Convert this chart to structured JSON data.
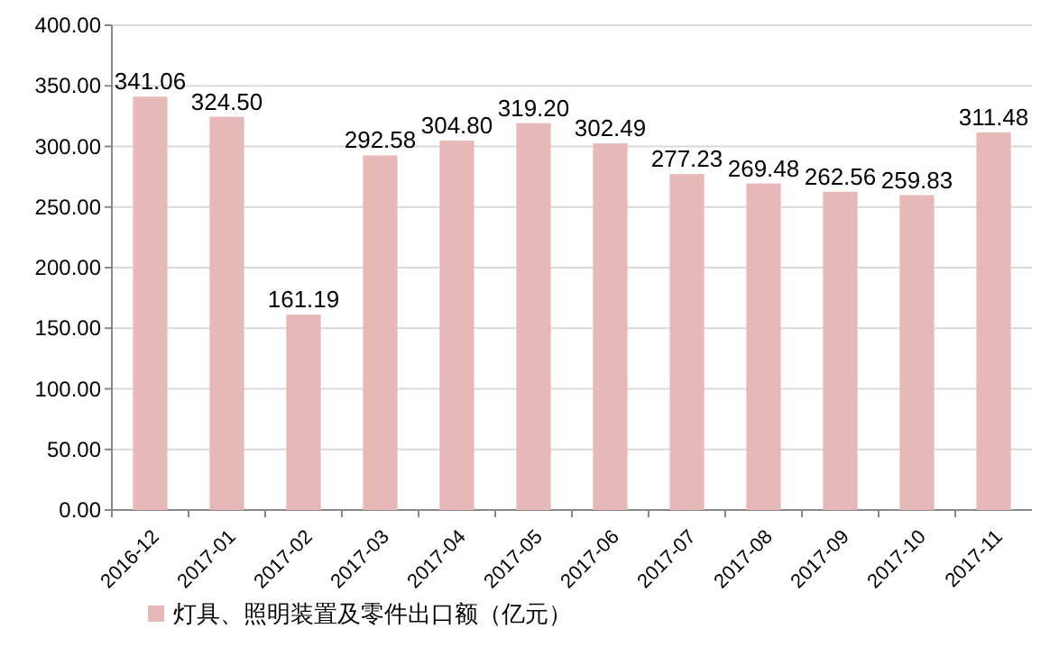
{
  "chart_data": {
    "type": "bar",
    "categories": [
      "2016-12",
      "2017-01",
      "2017-02",
      "2017-03",
      "2017-04",
      "2017-05",
      "2017-06",
      "2017-07",
      "2017-08",
      "2017-09",
      "2017-10",
      "2017-11"
    ],
    "series": [
      {
        "name": "灯具、照明装置及零件出口额（亿元）",
        "color": "#e6b9b8",
        "values": [
          341.06,
          324.5,
          161.19,
          292.58,
          304.8,
          319.2,
          302.49,
          277.23,
          269.48,
          262.56,
          259.83,
          311.48
        ],
        "value_labels": [
          "341.06",
          "324.50",
          "161.19",
          "292.58",
          "304.80",
          "319.20",
          "302.49",
          "277.23",
          "269.48",
          "262.56",
          "259.83",
          "311.48"
        ]
      }
    ],
    "ylim": [
      0,
      400
    ],
    "yticks": [
      {
        "value": 0,
        "label": "0.00"
      },
      {
        "value": 50,
        "label": "50.00"
      },
      {
        "value": 100,
        "label": "100.00"
      },
      {
        "value": 150,
        "label": "150.00"
      },
      {
        "value": 200,
        "label": "200.00"
      },
      {
        "value": 250,
        "label": "250.00"
      },
      {
        "value": 300,
        "label": "300.00"
      },
      {
        "value": 350,
        "label": "350.00"
      },
      {
        "value": 400,
        "label": "400.00"
      }
    ],
    "grid": "y",
    "legend": "bottom"
  }
}
